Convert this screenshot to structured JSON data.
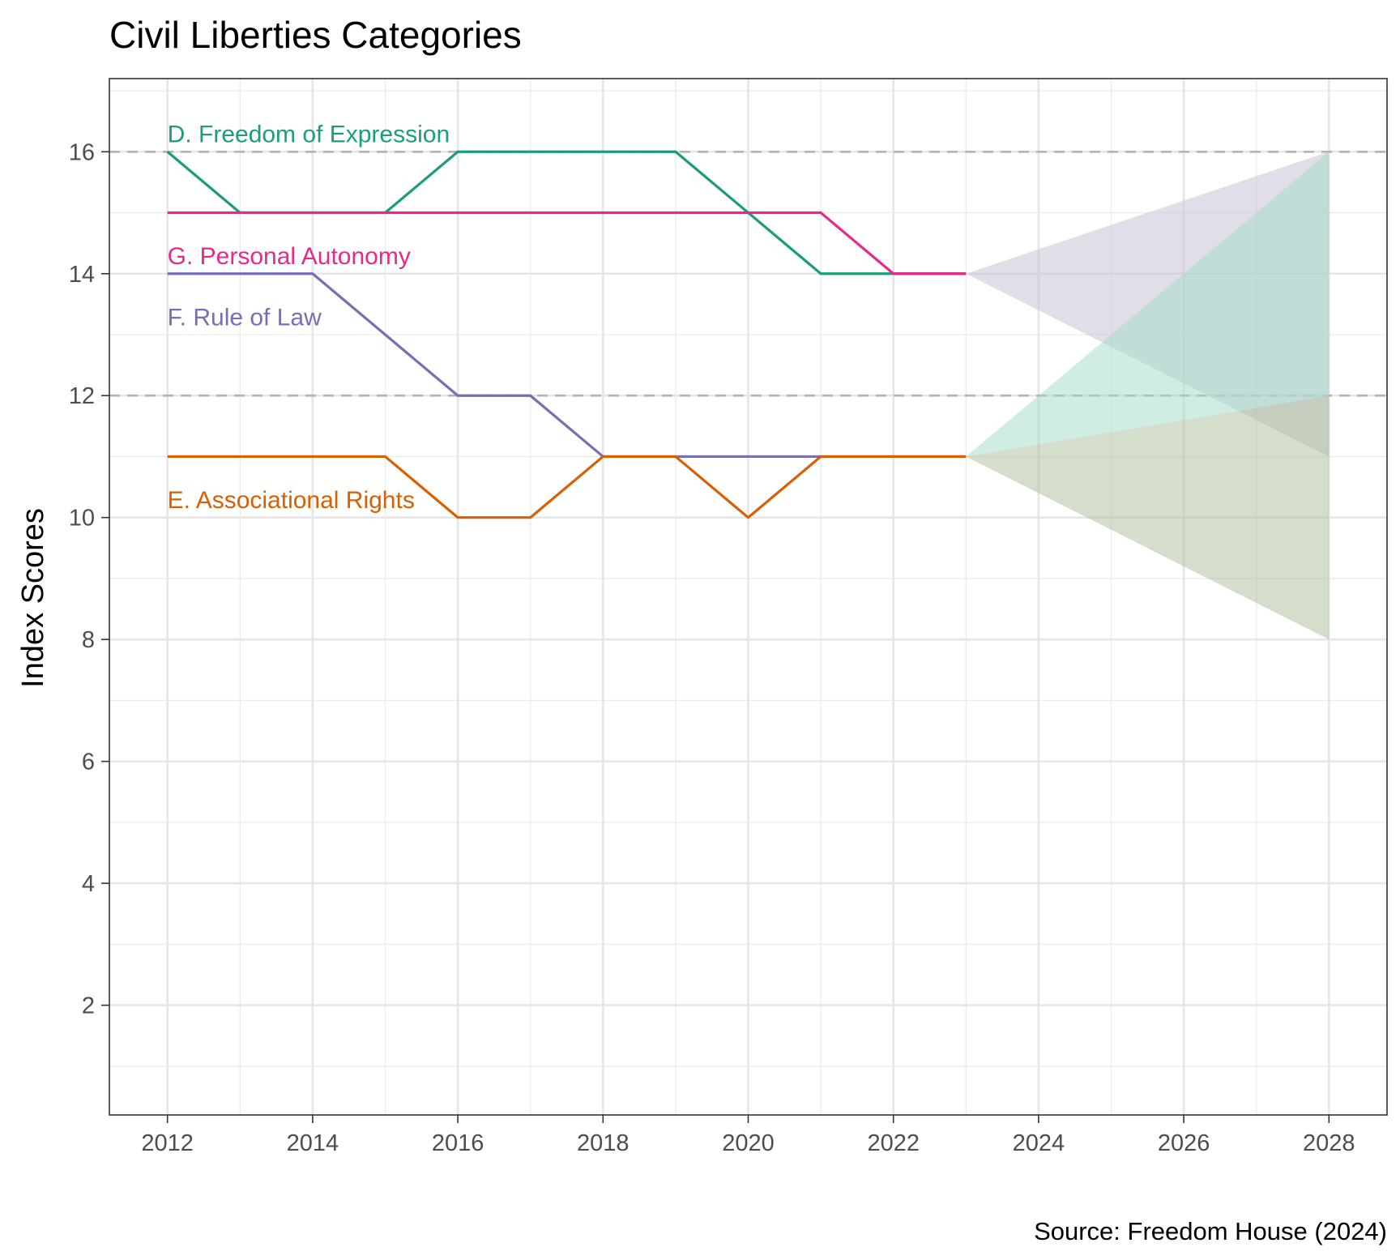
{
  "chart_data": {
    "type": "line",
    "title": "Civil Liberties Categories",
    "xlabel": "",
    "ylabel": "Index Scores",
    "caption": "Source: Freedom House (2024)",
    "xlim": [
      2011.2,
      2028.8
    ],
    "ylim": [
      0.2,
      17.2
    ],
    "x_ticks": [
      2012,
      2014,
      2016,
      2018,
      2020,
      2022,
      2024,
      2026,
      2028
    ],
    "y_ticks": [
      2,
      4,
      6,
      8,
      10,
      12,
      14,
      16
    ],
    "reference_lines": [
      16,
      12
    ],
    "grid": true,
    "legend": "none",
    "series": [
      {
        "name": "D. Freedom of Expression",
        "color": "#1B9E77",
        "label_anchor": [
          2012,
          16.3
        ],
        "x": [
          2012,
          2013,
          2014,
          2015,
          2016,
          2017,
          2018,
          2019,
          2020,
          2021,
          2022,
          2023
        ],
        "values": [
          16,
          15,
          15,
          15,
          16,
          16,
          16,
          16,
          15,
          14,
          14,
          14
        ]
      },
      {
        "name": "G. Personal Autonomy",
        "color": "#E7298A",
        "label_anchor": [
          2012,
          14.3
        ],
        "x": [
          2012,
          2013,
          2014,
          2015,
          2016,
          2017,
          2018,
          2019,
          2020,
          2021,
          2022,
          2023
        ],
        "values": [
          15,
          15,
          15,
          15,
          15,
          15,
          15,
          15,
          15,
          15,
          14,
          14
        ]
      },
      {
        "name": "F. Rule of Law",
        "color": "#7570B3",
        "label_anchor": [
          2012,
          13.3
        ],
        "x": [
          2012,
          2013,
          2014,
          2015,
          2016,
          2017,
          2018,
          2019,
          2020,
          2021,
          2022,
          2023
        ],
        "values": [
          14,
          14,
          14,
          13,
          12,
          12,
          11,
          11,
          11,
          11,
          11,
          11
        ]
      },
      {
        "name": "E. Associational Rights",
        "color": "#D95F02",
        "label_anchor": [
          2012,
          10.3
        ],
        "x": [
          2012,
          2013,
          2014,
          2015,
          2016,
          2017,
          2018,
          2019,
          2020,
          2021,
          2022,
          2023
        ],
        "values": [
          11,
          11,
          11,
          11,
          10,
          10,
          11,
          11,
          10,
          11,
          11,
          11
        ]
      }
    ],
    "projections": [
      {
        "from": [
          2023,
          14
        ],
        "to_x": 2028,
        "high": 16,
        "low": 11,
        "color": "#C9C3D4",
        "opacity": 0.55
      },
      {
        "from": [
          2023,
          11
        ],
        "to_x": 2028,
        "high": 16,
        "low": 12,
        "color": "#9FDCC7",
        "opacity": 0.5
      },
      {
        "from": [
          2023,
          11
        ],
        "to_x": 2028,
        "high": 12,
        "low": 8,
        "color": "#A9BE98",
        "opacity": 0.5
      }
    ]
  }
}
